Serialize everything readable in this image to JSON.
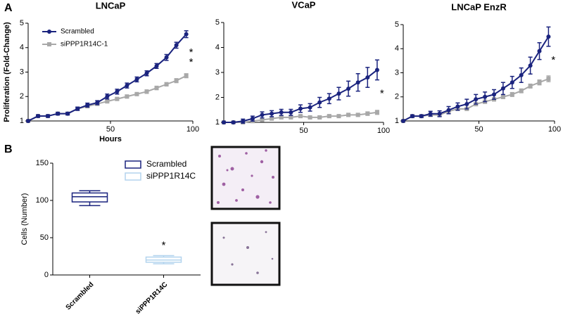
{
  "panel_labels": [
    "A",
    "B"
  ],
  "chart_data": [
    {
      "type": "line",
      "title": "LNCaP",
      "xlabel": "Hours",
      "ylabel": "Proliferation (Fold-Change)",
      "x": [
        0,
        6,
        12,
        18,
        24,
        30,
        36,
        42,
        48,
        54,
        60,
        66,
        72,
        78,
        84,
        90,
        96
      ],
      "series": [
        {
          "name": "Scrambled",
          "color": "#1a237e",
          "marker": "circle",
          "values": [
            1,
            1.2,
            1.2,
            1.3,
            1.3,
            1.5,
            1.65,
            1.75,
            2.0,
            2.2,
            2.45,
            2.7,
            2.95,
            3.25,
            3.6,
            4.1,
            4.55
          ],
          "errors": [
            0.02,
            0.05,
            0.05,
            0.05,
            0.05,
            0.07,
            0.08,
            0.08,
            0.1,
            0.1,
            0.1,
            0.1,
            0.1,
            0.1,
            0.12,
            0.12,
            0.14
          ]
        },
        {
          "name": "siPPP1R14C-1",
          "color": "#a8a8a8",
          "marker": "square",
          "values": [
            1,
            1.2,
            1.2,
            1.3,
            1.3,
            1.5,
            1.6,
            1.7,
            1.8,
            1.9,
            2.0,
            2.1,
            2.2,
            2.35,
            2.5,
            2.65,
            2.85
          ],
          "errors": [
            0.02,
            0.04,
            0.04,
            0.04,
            0.04,
            0.05,
            0.05,
            0.05,
            0.06,
            0.06,
            0.06,
            0.06,
            0.07,
            0.07,
            0.07,
            0.08,
            0.08
          ]
        }
      ],
      "annotations": [
        "*",
        "*"
      ],
      "xlim": [
        0,
        100
      ],
      "xticks": [
        50,
        100
      ],
      "ylim": [
        1,
        5
      ],
      "yticks": [
        1,
        2,
        3,
        4,
        5
      ],
      "legend": "upper left"
    },
    {
      "type": "line",
      "title": "VCaP",
      "x": [
        0,
        6,
        12,
        18,
        24,
        30,
        36,
        42,
        48,
        54,
        60,
        66,
        72,
        78,
        84,
        90,
        96
      ],
      "series": [
        {
          "color": "#1a237e",
          "marker": "circle",
          "values": [
            1,
            1,
            1.05,
            1.15,
            1.3,
            1.35,
            1.4,
            1.4,
            1.55,
            1.6,
            1.8,
            1.95,
            2.15,
            2.35,
            2.6,
            2.8,
            3.1
          ],
          "errors": [
            0.02,
            0.03,
            0.08,
            0.1,
            0.12,
            0.12,
            0.12,
            0.12,
            0.15,
            0.15,
            0.2,
            0.2,
            0.25,
            0.3,
            0.35,
            0.4,
            0.4
          ]
        },
        {
          "color": "#a8a8a8",
          "marker": "square",
          "values": [
            1,
            1,
            1,
            1.05,
            1.1,
            1.15,
            1.2,
            1.2,
            1.25,
            1.2,
            1.2,
            1.25,
            1.25,
            1.3,
            1.3,
            1.35,
            1.4
          ],
          "errors": [
            0.02,
            0.02,
            0.03,
            0.03,
            0.04,
            0.04,
            0.05,
            0.05,
            0.05,
            0.05,
            0.05,
            0.05,
            0.05,
            0.06,
            0.06,
            0.07,
            0.08
          ]
        }
      ],
      "annotations": [
        "*"
      ],
      "xlim": [
        0,
        100
      ],
      "xticks": [
        50,
        100
      ],
      "ylim": [
        1,
        5
      ],
      "yticks": [
        1,
        2,
        3,
        4,
        5
      ]
    },
    {
      "type": "line",
      "title": "LNCaP EnzR",
      "x": [
        0,
        6,
        12,
        18,
        24,
        30,
        36,
        42,
        48,
        54,
        60,
        66,
        72,
        78,
        84,
        90,
        96
      ],
      "series": [
        {
          "color": "#1a237e",
          "marker": "circle",
          "values": [
            1,
            1.2,
            1.2,
            1.3,
            1.3,
            1.45,
            1.6,
            1.7,
            1.9,
            2.0,
            2.1,
            2.35,
            2.6,
            2.9,
            3.3,
            3.9,
            4.5
          ],
          "errors": [
            0.02,
            0.05,
            0.05,
            0.1,
            0.12,
            0.15,
            0.15,
            0.2,
            0.2,
            0.2,
            0.2,
            0.25,
            0.25,
            0.3,
            0.35,
            0.35,
            0.4
          ]
        },
        {
          "color": "#a8a8a8",
          "marker": "square",
          "values": [
            1,
            1.2,
            1.2,
            1.25,
            1.25,
            1.4,
            1.5,
            1.5,
            1.7,
            1.8,
            1.9,
            2.0,
            2.1,
            2.25,
            2.45,
            2.6,
            2.75
          ],
          "errors": [
            0.02,
            0.04,
            0.04,
            0.05,
            0.05,
            0.06,
            0.06,
            0.06,
            0.07,
            0.07,
            0.07,
            0.07,
            0.08,
            0.08,
            0.08,
            0.1,
            0.12
          ]
        }
      ],
      "annotations": [
        "*"
      ],
      "xlim": [
        0,
        100
      ],
      "xticks": [
        50,
        100
      ],
      "ylim": [
        1,
        5
      ],
      "yticks": [
        1,
        2,
        3,
        4,
        5
      ]
    },
    {
      "type": "box",
      "ylabel": "Cells (Number)",
      "categories": [
        "Scrambled",
        "siPPP1R14C"
      ],
      "colors": [
        "#1a237e",
        "#b3d4ee"
      ],
      "boxes": [
        {
          "min": 93,
          "q1": 98,
          "median": 105,
          "q3": 110,
          "max": 113
        },
        {
          "min": 15,
          "q1": 17,
          "median": 20,
          "q3": 24,
          "max": 26
        }
      ],
      "annotations": [
        null,
        "*"
      ],
      "ylim": [
        0,
        150
      ],
      "yticks": [
        0,
        50,
        100,
        150
      ],
      "legend": "upper right"
    }
  ]
}
